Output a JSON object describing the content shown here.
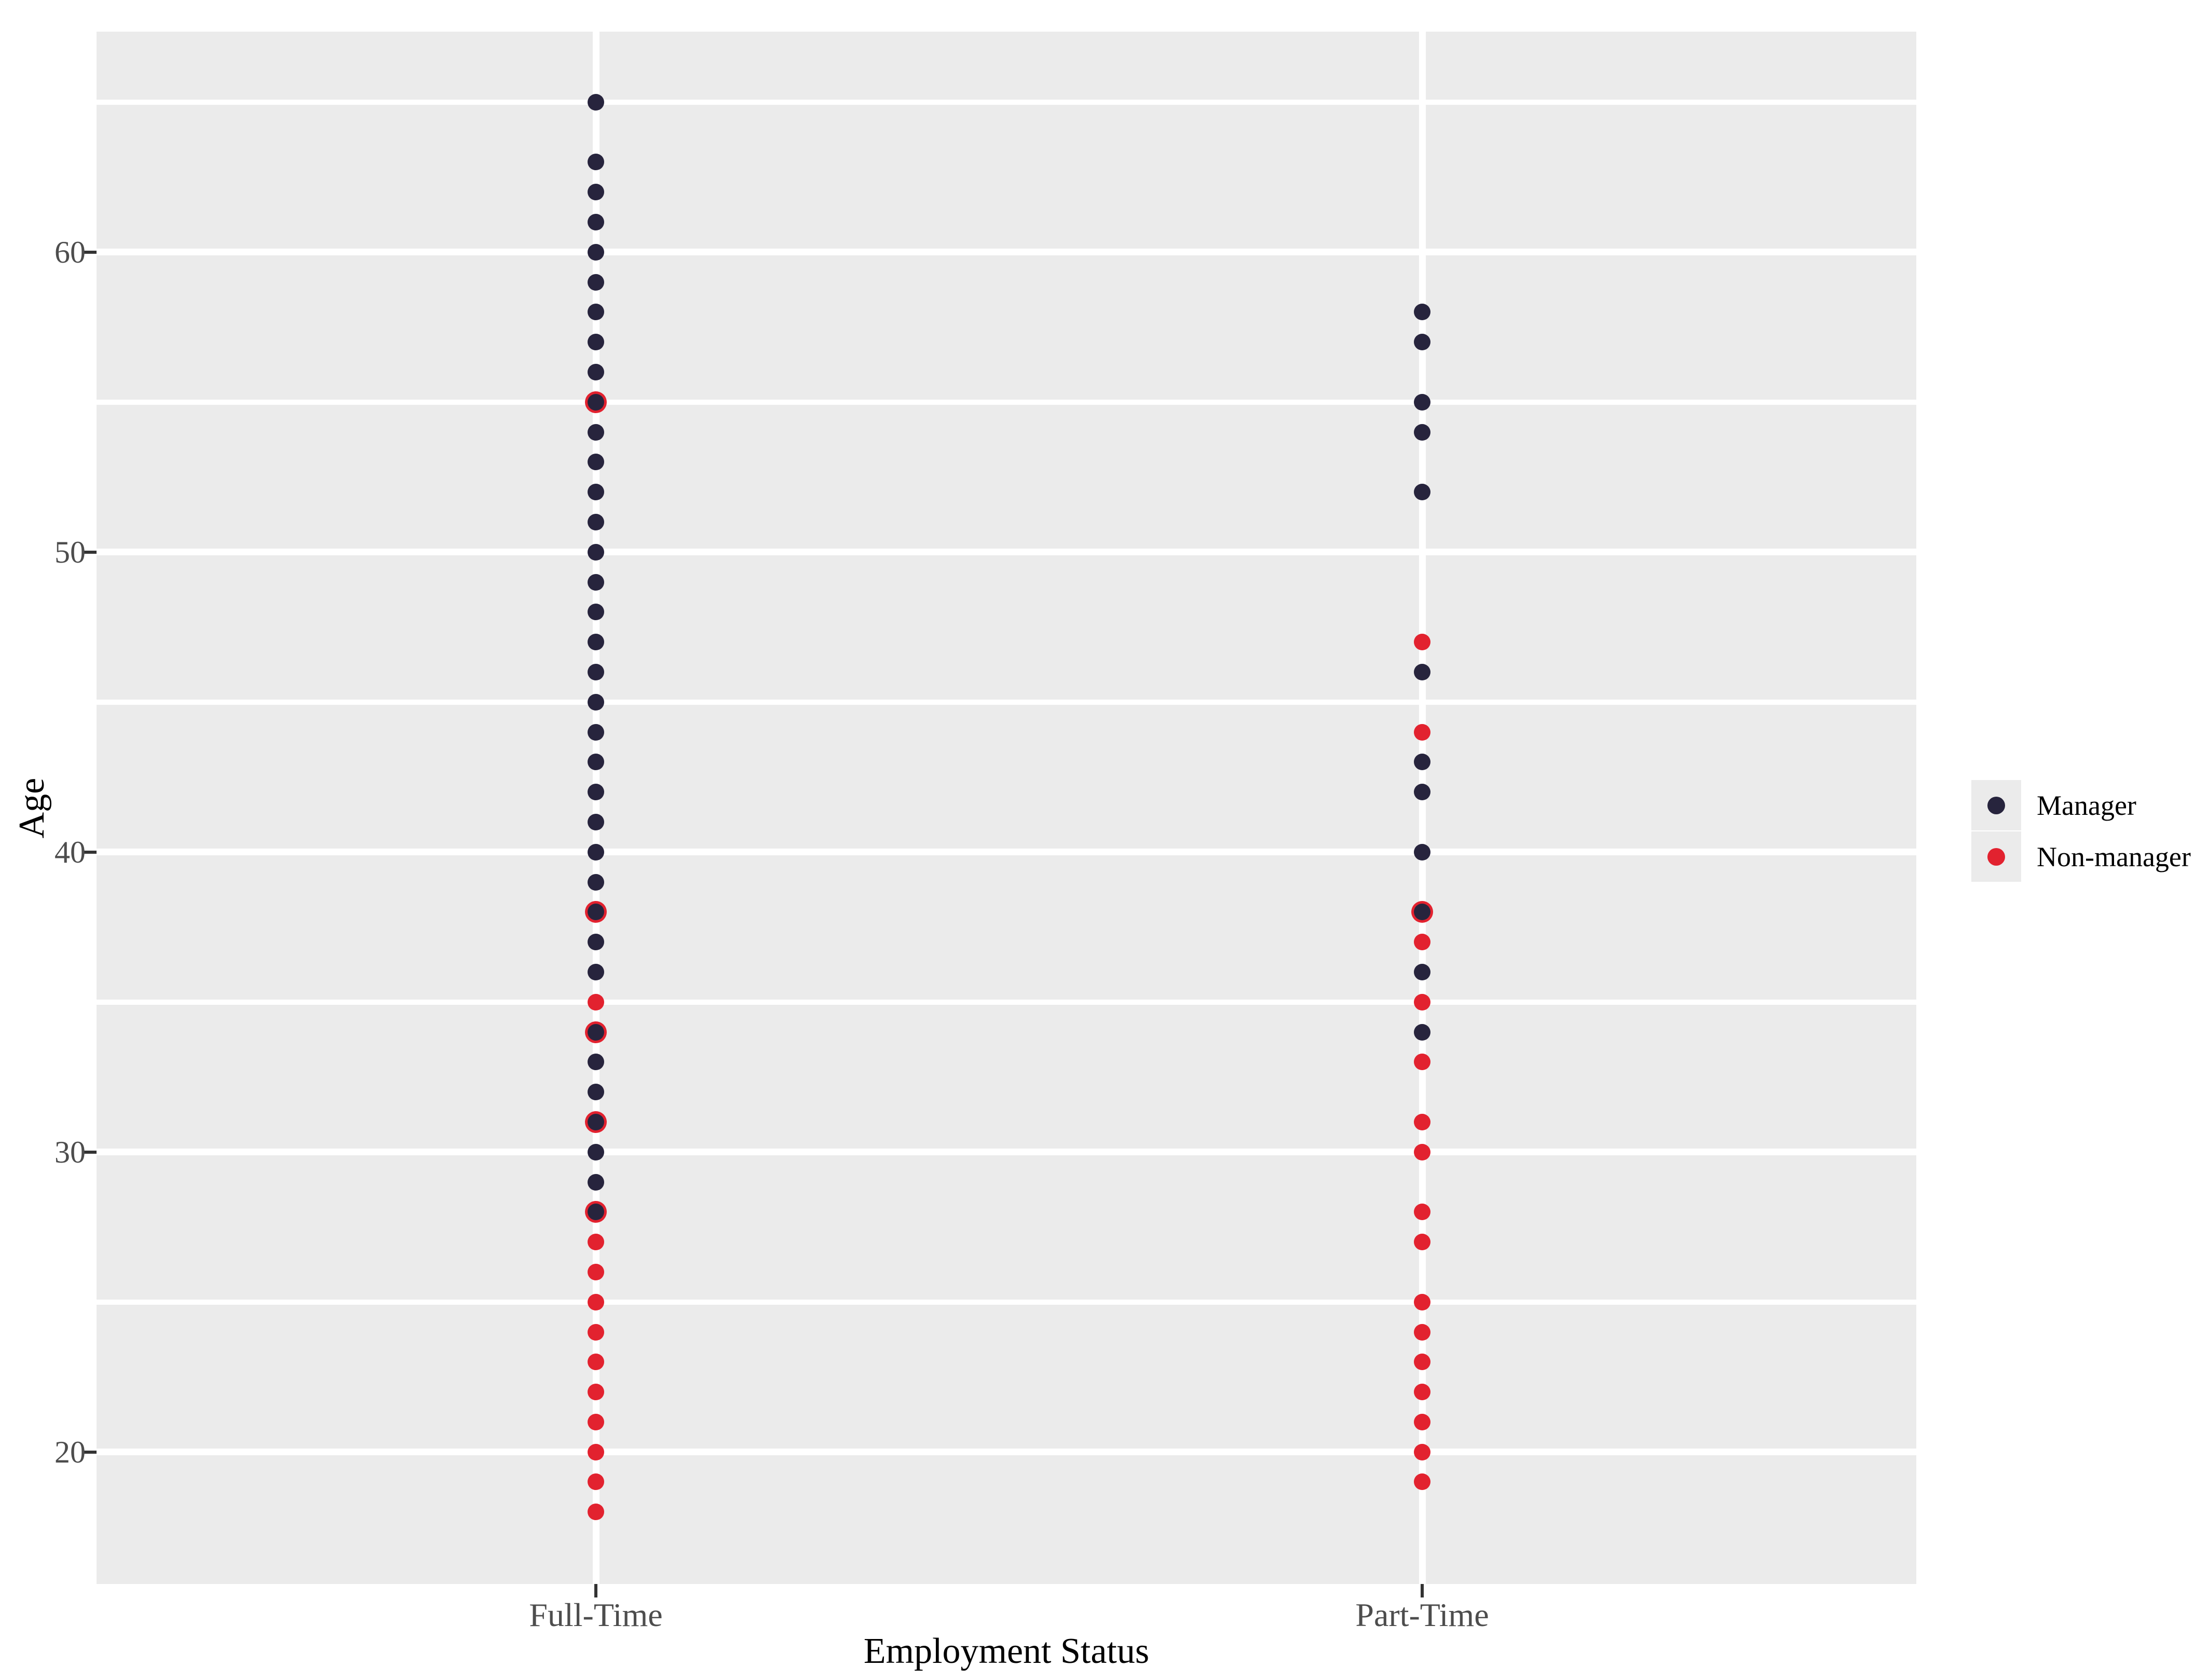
{
  "chart_data": {
    "type": "scatter",
    "title": "",
    "xlabel": "Employment Status",
    "ylabel": "Age",
    "categories": [
      "Full-Time",
      "Part-Time"
    ],
    "y_ticks": [
      20,
      30,
      40,
      50,
      60
    ],
    "y_minor_ticks": [
      25,
      35,
      45,
      55,
      65
    ],
    "ylim": [
      15.6,
      67.35
    ],
    "grid": "on",
    "panel_background": "#ebebeb",
    "gridline_color": "#ffffff",
    "colors": {
      "manager": "#27243d",
      "non_manager": "#e2222f",
      "tick_label": "#4d4d4d",
      "axis_title": "#000000",
      "tick_mark": "#333333",
      "legend_key_bg": "#ebebeb"
    },
    "series": [
      {
        "name": "Manager",
        "category": "Full-Time",
        "ages": [
          28,
          29,
          30,
          31,
          32,
          33,
          34,
          36,
          37,
          38,
          39,
          40,
          41,
          42,
          43,
          44,
          45,
          46,
          47,
          48,
          49,
          50,
          51,
          52,
          53,
          54,
          55,
          56,
          57,
          58,
          59,
          60,
          61,
          62,
          63,
          65
        ]
      },
      {
        "name": "Non-manager",
        "category": "Full-Time",
        "ages": [
          18,
          19,
          20,
          21,
          22,
          23,
          24,
          25,
          26,
          27,
          35
        ]
      },
      {
        "name": "Manager",
        "category": "Part-Time",
        "ages": [
          34,
          36,
          38,
          40,
          42,
          43,
          46,
          52,
          54,
          55,
          57,
          58
        ]
      },
      {
        "name": "Non-manager",
        "category": "Part-Time",
        "ages": [
          19,
          20,
          21,
          22,
          23,
          24,
          25,
          27,
          28,
          30,
          31,
          33,
          35,
          37,
          44,
          47
        ]
      }
    ],
    "overlap_ages": {
      "Full-Time": [
        28,
        31,
        34,
        38,
        55
      ],
      "Part-Time": [
        38
      ]
    },
    "legend": {
      "position": "right",
      "entries": [
        {
          "label": "Manager",
          "color": "#27243d"
        },
        {
          "label": "Non-manager",
          "color": "#e2222f"
        }
      ]
    }
  }
}
